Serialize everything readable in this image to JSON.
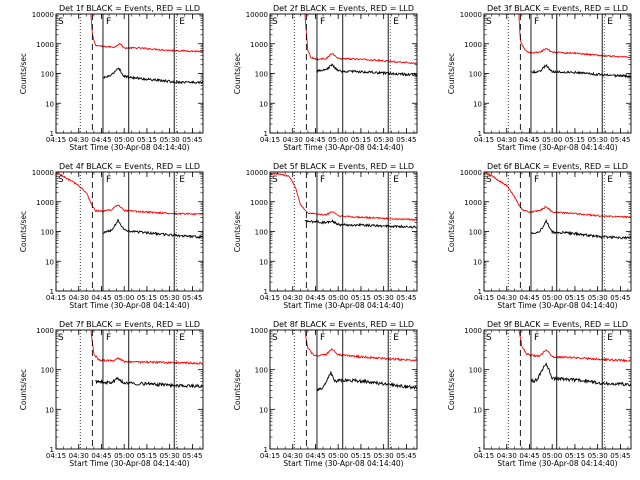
{
  "figure": {
    "xlabel": "Start Time (30-Apr-08 04:14:40)",
    "ylabel": "Counts/sec",
    "time_ticks": [
      "04:15",
      "04:30",
      "04:45",
      "05:00",
      "05:15",
      "05:30",
      "05:45"
    ],
    "y_ticks": [
      "1",
      "10",
      "100",
      "1000",
      "10000"
    ]
  },
  "chart_data": [
    {
      "type": "line",
      "title": "Det 1f BLACK = Events, RED = LLD",
      "xlim": [
        "04:15",
        "05:52"
      ],
      "ylim": [
        1,
        10000
      ],
      "yscale": "log",
      "markers": {
        "dotted": "04:31",
        "dashed": "04:39",
        "solid": [
          "04:46",
          "05:03",
          "05:33"
        ],
        "labels": [
          "S",
          "F",
          "E"
        ]
      },
      "series": [
        {
          "color": "#ff0000",
          "keyframes": [
            [
              "04:38",
              10000
            ],
            [
              "04:39",
              2000
            ],
            [
              "04:41",
              900
            ],
            [
              "04:46",
              800
            ],
            [
              "04:54",
              780
            ],
            [
              "04:57",
              1050
            ],
            [
              "05:00",
              720
            ],
            [
              "05:10",
              720
            ],
            [
              "05:30",
              600
            ],
            [
              "05:52",
              550
            ]
          ]
        },
        {
          "color": "#000000",
          "keyframes": [
            [
              "04:46",
              70
            ],
            [
              "04:52",
              90
            ],
            [
              "04:56",
              160
            ],
            [
              "05:00",
              80
            ],
            [
              "05:10",
              68
            ],
            [
              "05:33",
              52
            ],
            [
              "05:52",
              50
            ]
          ]
        }
      ]
    },
    {
      "type": "line",
      "title": "Det 2f BLACK = Events, RED = LLD",
      "xlim": [
        "04:15",
        "05:52"
      ],
      "ylim": [
        1,
        10000
      ],
      "yscale": "log",
      "markers": {
        "dotted": "04:31",
        "dashed": "04:39",
        "solid": [
          "04:46",
          "05:03",
          "05:33"
        ],
        "labels": [
          "S",
          "F",
          "E"
        ]
      },
      "series": [
        {
          "color": "#ff0000",
          "keyframes": [
            [
              "04:38",
              10000
            ],
            [
              "04:40",
              600
            ],
            [
              "04:42",
              350
            ],
            [
              "04:46",
              300
            ],
            [
              "04:52",
              320
            ],
            [
              "04:56",
              470
            ],
            [
              "05:00",
              320
            ],
            [
              "05:15",
              300
            ],
            [
              "05:33",
              260
            ],
            [
              "05:52",
              220
            ]
          ]
        },
        {
          "color": "#000000",
          "keyframes": [
            [
              "04:46",
              120
            ],
            [
              "04:52",
              130
            ],
            [
              "04:56",
              200
            ],
            [
              "05:00",
              120
            ],
            [
              "05:15",
              115
            ],
            [
              "05:33",
              100
            ],
            [
              "05:52",
              90
            ]
          ]
        }
      ]
    },
    {
      "type": "line",
      "title": "Det 3f BLACK = Events, RED = LLD",
      "xlim": [
        "04:15",
        "05:52"
      ],
      "ylim": [
        1,
        10000
      ],
      "yscale": "log",
      "markers": {
        "dotted": "04:31",
        "dashed": "04:39",
        "solid": [
          "04:46",
          "05:03",
          "05:33"
        ],
        "labels": [
          "S",
          "F",
          "E"
        ]
      },
      "series": [
        {
          "color": "#ff0000",
          "keyframes": [
            [
              "04:38",
              10000
            ],
            [
              "04:39",
              1200
            ],
            [
              "04:42",
              600
            ],
            [
              "04:46",
              500
            ],
            [
              "04:52",
              520
            ],
            [
              "04:56",
              700
            ],
            [
              "05:00",
              520
            ],
            [
              "05:15",
              480
            ],
            [
              "05:33",
              400
            ],
            [
              "05:52",
              350
            ]
          ]
        },
        {
          "color": "#000000",
          "keyframes": [
            [
              "04:46",
              110
            ],
            [
              "04:52",
              120
            ],
            [
              "04:56",
              190
            ],
            [
              "05:00",
              115
            ],
            [
              "05:15",
              110
            ],
            [
              "05:33",
              90
            ],
            [
              "05:52",
              80
            ]
          ]
        }
      ]
    },
    {
      "type": "line",
      "title": "Det 4f BLACK = Events, RED = LLD",
      "xlim": [
        "04:15",
        "05:52"
      ],
      "ylim": [
        1,
        10000
      ],
      "yscale": "log",
      "markers": {
        "dotted": "04:31",
        "dashed": "04:39",
        "solid": [
          "04:46",
          "05:03",
          "05:33"
        ],
        "labels": [
          "S",
          "F",
          "E"
        ]
      },
      "series": [
        {
          "color": "#ff0000",
          "keyframes": [
            [
              "04:15",
              10000
            ],
            [
              "04:20",
              7000
            ],
            [
              "04:25",
              5000
            ],
            [
              "04:30",
              3500
            ],
            [
              "04:35",
              2000
            ],
            [
              "04:38",
              900
            ],
            [
              "04:41",
              500
            ],
            [
              "04:46",
              480
            ],
            [
              "04:52",
              550
            ],
            [
              "04:56",
              800
            ],
            [
              "05:00",
              500
            ],
            [
              "05:15",
              450
            ],
            [
              "05:33",
              400
            ],
            [
              "05:52",
              380
            ]
          ]
        },
        {
          "color": "#000000",
          "keyframes": [
            [
              "04:46",
              90
            ],
            [
              "04:52",
              110
            ],
            [
              "04:56",
              250
            ],
            [
              "05:00",
              110
            ],
            [
              "05:15",
              90
            ],
            [
              "05:33",
              75
            ],
            [
              "05:52",
              65
            ]
          ]
        }
      ]
    },
    {
      "type": "line",
      "title": "Det 5f BLACK = Events, RED = LLD",
      "xlim": [
        "04:15",
        "05:52"
      ],
      "ylim": [
        1,
        10000
      ],
      "yscale": "log",
      "markers": {
        "dotted": "04:31",
        "dashed": "04:39",
        "solid": [
          "04:46",
          "05:03",
          "05:33"
        ],
        "labels": [
          "S",
          "F",
          "E"
        ]
      },
      "series": [
        {
          "color": "#ff0000",
          "keyframes": [
            [
              "04:15",
              9000
            ],
            [
              "04:22",
              8500
            ],
            [
              "04:28",
              7000
            ],
            [
              "04:32",
              3000
            ],
            [
              "04:35",
              800
            ],
            [
              "04:40",
              420
            ],
            [
              "04:46",
              380
            ],
            [
              "04:52",
              360
            ],
            [
              "04:56",
              480
            ],
            [
              "05:00",
              330
            ],
            [
              "05:15",
              300
            ],
            [
              "05:33",
              270
            ],
            [
              "05:52",
              250
            ]
          ]
        },
        {
          "color": "#000000",
          "keyframes": [
            [
              "04:38",
              220
            ],
            [
              "04:46",
              210
            ],
            [
              "04:52",
              200
            ],
            [
              "04:56",
              230
            ],
            [
              "05:00",
              170
            ],
            [
              "05:15",
              165
            ],
            [
              "05:33",
              150
            ],
            [
              "05:52",
              140
            ]
          ]
        }
      ]
    },
    {
      "type": "line",
      "title": "Det 6f BLACK = Events, RED = LLD",
      "xlim": [
        "04:15",
        "05:52"
      ],
      "ylim": [
        1,
        10000
      ],
      "yscale": "log",
      "markers": {
        "dotted": "04:31",
        "dashed": "04:39",
        "solid": [
          "04:46",
          "05:03",
          "05:33"
        ],
        "labels": [
          "S",
          "F",
          "E"
        ]
      },
      "series": [
        {
          "color": "#ff0000",
          "keyframes": [
            [
              "04:15",
              10000
            ],
            [
              "04:20",
              7500
            ],
            [
              "04:25",
              5000
            ],
            [
              "04:30",
              3500
            ],
            [
              "04:35",
              1500
            ],
            [
              "04:38",
              800
            ],
            [
              "04:41",
              500
            ],
            [
              "04:46",
              450
            ],
            [
              "04:52",
              500
            ],
            [
              "04:56",
              700
            ],
            [
              "05:00",
              450
            ],
            [
              "05:15",
              400
            ],
            [
              "05:33",
              330
            ],
            [
              "05:52",
              300
            ]
          ]
        },
        {
          "color": "#000000",
          "keyframes": [
            [
              "04:46",
              90
            ],
            [
              "04:52",
              100
            ],
            [
              "04:56",
              230
            ],
            [
              "05:00",
              95
            ],
            [
              "05:15",
              85
            ],
            [
              "05:33",
              65
            ],
            [
              "05:52",
              60
            ]
          ]
        }
      ]
    },
    {
      "type": "line",
      "title": "Det 7f BLACK = Events, RED = LLD",
      "xlim": [
        "04:15",
        "05:52"
      ],
      "ylim": [
        1,
        1000
      ],
      "yscale": "log",
      "markers": {
        "dotted": "04:31",
        "dashed": "04:39",
        "solid": [
          "04:46",
          "05:03",
          "05:33"
        ],
        "labels": [
          "S",
          "F",
          "E"
        ]
      },
      "series": [
        {
          "color": "#ff0000",
          "keyframes": [
            [
              "04:38",
              1000
            ],
            [
              "04:40",
              250
            ],
            [
              "04:43",
              180
            ],
            [
              "04:46",
              170
            ],
            [
              "04:52",
              165
            ],
            [
              "04:56",
              200
            ],
            [
              "05:00",
              160
            ],
            [
              "05:15",
              155
            ],
            [
              "05:33",
              150
            ],
            [
              "05:52",
              145
            ]
          ]
        },
        {
          "color": "#000000",
          "keyframes": [
            [
              "04:41",
              50
            ],
            [
              "04:46",
              48
            ],
            [
              "04:52",
              47
            ],
            [
              "04:56",
              60
            ],
            [
              "05:00",
              46
            ],
            [
              "05:15",
              44
            ],
            [
              "05:33",
              40
            ],
            [
              "05:52",
              38
            ]
          ]
        }
      ]
    },
    {
      "type": "line",
      "title": "Det 8f BLACK = Events, RED = LLD",
      "xlim": [
        "04:15",
        "05:52"
      ],
      "ylim": [
        1,
        1000
      ],
      "yscale": "log",
      "markers": {
        "dotted": "04:31",
        "dashed": "04:39",
        "solid": [
          "04:46",
          "05:03",
          "05:33"
        ],
        "labels": [
          "S",
          "F",
          "E"
        ]
      },
      "series": [
        {
          "color": "#ff0000",
          "keyframes": [
            [
              "04:38",
              1000
            ],
            [
              "04:40",
              350
            ],
            [
              "04:43",
              250
            ],
            [
              "04:46",
              220
            ],
            [
              "04:52",
              240
            ],
            [
              "04:56",
              330
            ],
            [
              "05:00",
              240
            ],
            [
              "05:15",
              210
            ],
            [
              "05:33",
              190
            ],
            [
              "05:52",
              170
            ]
          ]
        },
        {
          "color": "#000000",
          "keyframes": [
            [
              "04:46",
              30
            ],
            [
              "04:50",
              35
            ],
            [
              "04:55",
              85
            ],
            [
              "04:58",
              50
            ],
            [
              "05:00",
              55
            ],
            [
              "05:15",
              52
            ],
            [
              "05:33",
              42
            ],
            [
              "05:52",
              35
            ]
          ]
        }
      ]
    },
    {
      "type": "line",
      "title": "Det 9f BLACK = Events, RED = LLD",
      "xlim": [
        "04:15",
        "05:52"
      ],
      "ylim": [
        1,
        1000
      ],
      "yscale": "log",
      "markers": {
        "dotted": "04:31",
        "dashed": "04:39",
        "solid": [
          "04:46",
          "05:03",
          "05:33"
        ],
        "labels": [
          "S",
          "F",
          "E"
        ]
      },
      "series": [
        {
          "color": "#ff0000",
          "keyframes": [
            [
              "04:38",
              1000
            ],
            [
              "04:40",
              400
            ],
            [
              "04:43",
              250
            ],
            [
              "04:46",
              230
            ],
            [
              "04:52",
              220
            ],
            [
              "04:56",
              330
            ],
            [
              "05:00",
              210
            ],
            [
              "05:15",
              200
            ],
            [
              "05:33",
              180
            ],
            [
              "05:52",
              170
            ]
          ]
        },
        {
          "color": "#000000",
          "keyframes": [
            [
              "04:46",
              50
            ],
            [
              "04:50",
              55
            ],
            [
              "04:56",
              150
            ],
            [
              "05:00",
              60
            ],
            [
              "05:15",
              55
            ],
            [
              "05:33",
              45
            ],
            [
              "05:52",
              42
            ]
          ]
        }
      ]
    }
  ]
}
